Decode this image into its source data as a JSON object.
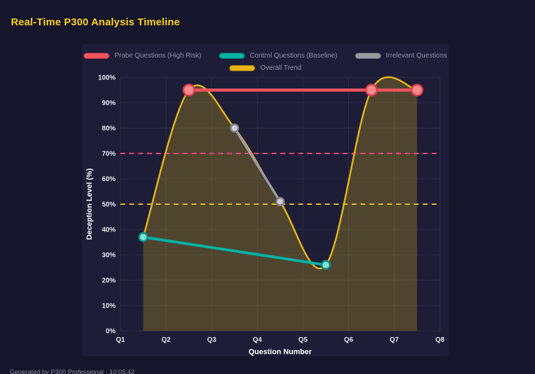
{
  "header": {
    "title": "Real-Time P300 Analysis Timeline"
  },
  "footer": {
    "text": "Generated by P300 Professional · 10:05:42"
  },
  "chart_data": {
    "type": "line",
    "title": "Real-Time P300 Analysis Timeline",
    "xlabel": "Question Number",
    "ylabel": "Deception Level (%)",
    "x_ticks": [
      "Q1",
      "Q2",
      "Q3",
      "Q4",
      "Q5",
      "Q6",
      "Q7",
      "Q8"
    ],
    "xlim": [
      1,
      8
    ],
    "ylim": [
      0,
      100
    ],
    "y_tick_step": 10,
    "y_tick_suffix": "%",
    "grid": true,
    "legend_position": "top",
    "colors": {
      "grid": "#2b2b49",
      "tick_text": "#e9e9f2",
      "axis_title": "#ffffff",
      "area_fill": "rgba(232, 192, 16, 0.25)"
    },
    "series": [
      {
        "name": "Probe Questions (High Risk)",
        "color": "#f0545f",
        "marker_fill": "#f58a8a",
        "marker_stroke": "#e03a4a",
        "marker_radius": 8,
        "line_width": 4.5,
        "x": [
          2.5,
          6.5,
          7.5
        ],
        "values": [
          95,
          95,
          95
        ],
        "smooth": false,
        "area": false
      },
      {
        "name": "Control Questions (Baseline)",
        "color": "#00b3a4",
        "marker_fill": "#8adfd6",
        "marker_stroke": "#00968a",
        "marker_radius": 6,
        "line_width": 4,
        "x": [
          1.5,
          5.5
        ],
        "values": [
          37,
          26
        ],
        "smooth": false,
        "area": false
      },
      {
        "name": "Irrelevant Questions",
        "color": "#9a9aa5",
        "marker_fill": "#cfcfd6",
        "marker_stroke": "#80808c",
        "marker_radius": 5.5,
        "line_width": 3.5,
        "x": [
          3.5,
          4.5
        ],
        "values": [
          80,
          51
        ],
        "smooth": false,
        "area": false
      },
      {
        "name": "Overall Trend",
        "color": "#e7b416",
        "marker_radius": 0,
        "line_width": 2.5,
        "x": [
          1.5,
          2.5,
          3.5,
          4.5,
          5.5,
          6.5,
          7.5
        ],
        "values": [
          37,
          95,
          80,
          51,
          26,
          95,
          95
        ],
        "smooth": true,
        "area": true
      }
    ],
    "thresholds": [
      {
        "value": 70,
        "color": "#f1447c",
        "style": "dashed"
      },
      {
        "value": 50,
        "color": "#e0c020",
        "style": "dashed"
      }
    ],
    "legend_rows": [
      [
        0,
        1,
        2
      ],
      [
        3
      ]
    ]
  }
}
